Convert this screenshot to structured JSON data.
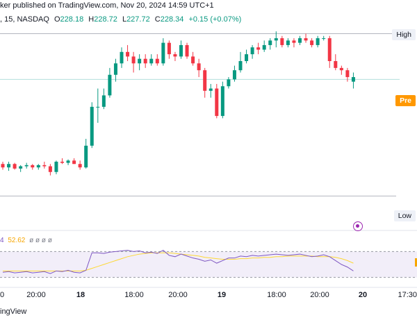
{
  "header": {
    "publisher": "ker published on TradingView.com, Nov 20, 2024 14:59 UTC+1",
    "symbol": ", 15, NASDAQ",
    "open_key": "O",
    "open": "228.18",
    "high_key": "H",
    "high": "228.72",
    "low_key": "L",
    "low": "227.72",
    "close_key": "C",
    "close": "228.34",
    "change": "+0.15 (+0.07%)"
  },
  "price_tags": {
    "high": "High",
    "pre": "Pre",
    "low": "Low"
  },
  "rsi_legend": {
    "value_a": "4",
    "value_b": "52.62",
    "zeros": "ø ø ø ø"
  },
  "xaxis": [
    {
      "label": "0",
      "bold": false
    },
    {
      "label": "20:00",
      "bold": false
    },
    {
      "label": "18",
      "bold": true
    },
    {
      "label": "18:00",
      "bold": false
    },
    {
      "label": "20:00",
      "bold": false
    },
    {
      "label": "19",
      "bold": true
    },
    {
      "label": "18:00",
      "bold": false
    },
    {
      "label": "20:00",
      "bold": false
    },
    {
      "label": "20",
      "bold": true
    },
    {
      "label": "17:30",
      "bold": false
    }
  ],
  "brand": "ingView",
  "colors": {
    "up": "#089981",
    "down": "#f23645",
    "rsi_line": "#7e57c2",
    "rsi_ma": "#fdd835",
    "rsi_band": "#7e57c2",
    "high_line": "#b2b5be",
    "pre_line": "#b2dfdb"
  },
  "chart_data": {
    "type": "candlestick",
    "price_range": [
      221.0,
      229.5
    ],
    "levels": {
      "high": 229.0,
      "pre": 227.0,
      "low": 221.9
    },
    "candles": [
      [
        223.3,
        223.4,
        223.05,
        223.15
      ],
      [
        223.15,
        223.4,
        223.0,
        223.3
      ],
      [
        223.3,
        223.35,
        223.05,
        223.1
      ],
      [
        223.1,
        223.25,
        222.95,
        223.2
      ],
      [
        223.2,
        223.35,
        223.1,
        223.25
      ],
      [
        223.25,
        223.3,
        223.05,
        223.15
      ],
      [
        223.15,
        223.3,
        223.05,
        223.25
      ],
      [
        223.25,
        223.4,
        223.1,
        223.2
      ],
      [
        223.2,
        223.3,
        222.8,
        222.95
      ],
      [
        222.95,
        223.45,
        222.85,
        223.4
      ],
      [
        223.4,
        223.55,
        223.3,
        223.35
      ],
      [
        223.35,
        223.5,
        223.25,
        223.45
      ],
      [
        223.45,
        223.55,
        223.3,
        223.3
      ],
      [
        223.3,
        223.45,
        223.05,
        223.15
      ],
      [
        223.15,
        224.4,
        223.1,
        224.1
      ],
      [
        224.1,
        226.0,
        224.0,
        225.8
      ],
      [
        225.8,
        226.6,
        225.1,
        225.8
      ],
      [
        225.8,
        226.6,
        225.7,
        226.3
      ],
      [
        226.3,
        227.5,
        226.2,
        227.2
      ],
      [
        227.2,
        227.9,
        226.9,
        227.7
      ],
      [
        227.7,
        228.4,
        227.5,
        228.2
      ],
      [
        228.2,
        228.5,
        227.8,
        228.0
      ],
      [
        228.0,
        228.2,
        227.3,
        227.7
      ],
      [
        227.7,
        228.1,
        227.4,
        227.9
      ],
      [
        227.9,
        228.1,
        227.5,
        227.7
      ],
      [
        227.7,
        228.1,
        227.6,
        227.9
      ],
      [
        227.9,
        228.1,
        227.6,
        227.7
      ],
      [
        227.7,
        228.8,
        227.6,
        228.6
      ],
      [
        228.6,
        228.7,
        227.9,
        228.1
      ],
      [
        228.1,
        228.2,
        227.8,
        228.0
      ],
      [
        228.0,
        228.7,
        227.9,
        228.5
      ],
      [
        228.5,
        228.6,
        227.9,
        228.0
      ],
      [
        228.0,
        228.2,
        227.6,
        227.7
      ],
      [
        227.7,
        227.9,
        227.1,
        227.4
      ],
      [
        227.4,
        227.5,
        226.2,
        226.5
      ],
      [
        226.5,
        226.8,
        226.2,
        226.6
      ],
      [
        226.6,
        226.8,
        225.3,
        225.4
      ],
      [
        225.4,
        226.9,
        225.3,
        226.7
      ],
      [
        226.7,
        227.1,
        226.6,
        227.0
      ],
      [
        227.0,
        227.6,
        226.9,
        227.4
      ],
      [
        227.4,
        228.2,
        227.3,
        227.8
      ],
      [
        227.8,
        228.3,
        227.7,
        228.1
      ],
      [
        228.1,
        228.5,
        227.9,
        228.4
      ],
      [
        228.4,
        228.6,
        228.1,
        228.3
      ],
      [
        228.3,
        228.7,
        228.2,
        228.5
      ],
      [
        228.5,
        228.8,
        228.3,
        228.7
      ],
      [
        228.7,
        229.1,
        228.4,
        228.8
      ],
      [
        228.8,
        228.9,
        228.4,
        228.5
      ],
      [
        228.5,
        228.8,
        228.4,
        228.7
      ],
      [
        228.7,
        228.8,
        228.4,
        228.6
      ],
      [
        228.6,
        228.9,
        228.5,
        228.8
      ],
      [
        228.8,
        229.0,
        228.6,
        228.7
      ],
      [
        228.7,
        228.8,
        228.4,
        228.5
      ],
      [
        228.5,
        228.9,
        228.4,
        228.8
      ],
      [
        228.8,
        228.9,
        228.7,
        228.8
      ],
      [
        228.8,
        228.9,
        227.5,
        227.8
      ],
      [
        227.8,
        228.1,
        227.4,
        227.5
      ],
      [
        227.5,
        227.6,
        227.2,
        227.4
      ],
      [
        227.4,
        227.5,
        226.9,
        227.1
      ],
      [
        226.9,
        227.3,
        226.6,
        227.1
      ]
    ],
    "rsi": [
      38,
      39,
      37,
      38,
      39,
      37,
      38,
      39,
      36,
      40,
      39,
      41,
      38,
      37,
      41,
      68,
      68,
      67,
      69,
      70,
      71,
      72,
      70,
      71,
      68,
      69,
      67,
      72,
      64,
      62,
      66,
      63,
      60,
      58,
      55,
      57,
      52,
      56,
      60,
      60,
      63,
      62,
      64,
      63,
      64,
      65,
      66,
      65,
      64,
      65,
      66,
      64,
      62,
      63,
      65,
      62,
      56,
      50,
      46,
      40
    ],
    "rsi_ma": [
      40,
      40,
      40,
      40,
      40,
      40,
      40,
      40,
      40,
      40,
      40,
      40,
      40,
      40,
      41,
      44,
      47,
      50,
      53,
      56,
      59,
      62,
      64,
      66,
      67,
      68,
      68,
      68,
      68,
      67,
      66,
      65,
      64,
      63,
      61,
      60,
      59,
      58,
      58,
      58,
      59,
      59,
      60,
      60,
      61,
      61,
      62,
      62,
      63,
      63,
      63,
      63,
      63,
      62,
      62,
      62,
      61,
      59,
      56,
      52
    ],
    "rsi_range": [
      20,
      80
    ],
    "rsi_bands": [
      30,
      70
    ]
  }
}
